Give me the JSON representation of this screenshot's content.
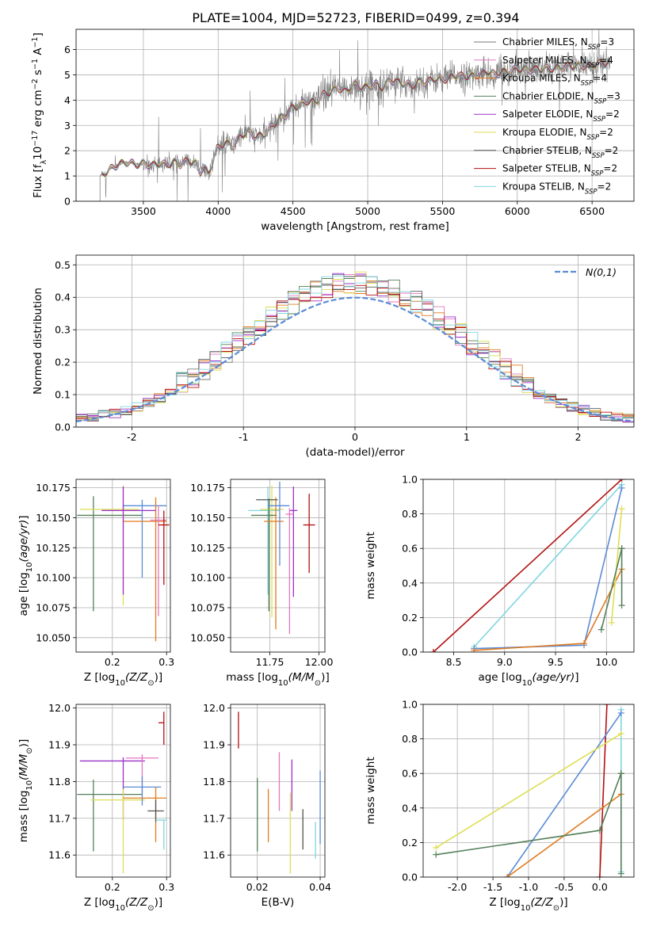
{
  "figure_title": "PLATE=1004, MJD=52723, FIBERID=0499, z=0.394",
  "models": [
    {
      "name": "Chabrier MILES",
      "nssp": "3",
      "color": "#7a7a7a"
    },
    {
      "name": "Salpeter MILES",
      "nssp": "4",
      "color": "#e377c2"
    },
    {
      "name": "Kroupa MILES",
      "nssp": "4",
      "color": "#e07b1f"
    },
    {
      "name": "Chabrier ELODIE",
      "nssp": "3",
      "color": "#55805a"
    },
    {
      "name": "Salpeter ELODIE",
      "nssp": "2",
      "color": "#9b30c8"
    },
    {
      "name": "Kroupa ELODIE",
      "nssp": "2",
      "color": "#dede55"
    },
    {
      "name": "Chabrier STELIB",
      "nssp": "2",
      "color": "#555555"
    },
    {
      "name": "Salpeter STELIB",
      "nssp": "2",
      "color": "#b31010"
    },
    {
      "name": "Kroupa STELIB",
      "nssp": "2",
      "color": "#7fd6e0"
    }
  ],
  "chart_data": [
    {
      "id": "spectrum",
      "type": "line",
      "xlabel": "wavelength [Angstrom, rest frame]",
      "ylabel": "Flux [f_λ 10^-17 erg cm^-2 s^-1 A^-1]",
      "xlim": [
        3050,
        6780
      ],
      "ylim": [
        0,
        6.8
      ],
      "xticks": [
        3500,
        4000,
        4500,
        5000,
        5500,
        6000,
        6500
      ],
      "yticks": [
        0,
        1,
        2,
        3,
        4,
        5,
        6
      ],
      "data_color": "#7f7f7f",
      "data_range": [
        3210,
        6620
      ],
      "continuum": {
        "x": [
          3210,
          3290,
          3330,
          3360,
          3400,
          3450,
          3500,
          3560,
          3600,
          3650,
          3700,
          3750,
          3800,
          3850,
          3880,
          3905,
          3935,
          3965,
          3990,
          4050,
          4100,
          4150,
          4200,
          4250,
          4300,
          4350,
          4400,
          4450,
          4500,
          4550,
          4600,
          4650,
          4700,
          4750,
          4800,
          4850,
          4900,
          4950,
          5000,
          5050,
          5100,
          5150,
          5200,
          5250,
          5300,
          5350,
          5400,
          5450,
          5500,
          5550,
          5600,
          5650,
          5700,
          5750,
          5800,
          5850,
          5900,
          5950,
          6000,
          6100,
          6200,
          6300,
          6400,
          6500,
          6600
        ],
        "y": [
          1.0,
          1.3,
          1.45,
          1.5,
          1.55,
          1.45,
          1.5,
          1.4,
          1.5,
          1.45,
          1.55,
          1.45,
          1.6,
          1.5,
          1.15,
          1.4,
          1.05,
          1.6,
          2.05,
          2.3,
          2.2,
          2.6,
          2.75,
          2.55,
          2.6,
          2.9,
          3.25,
          3.4,
          3.7,
          3.8,
          4.0,
          3.9,
          4.2,
          4.3,
          4.5,
          4.35,
          4.6,
          4.5,
          4.5,
          4.65,
          4.5,
          4.8,
          4.7,
          4.65,
          4.6,
          4.75,
          4.7,
          4.85,
          4.8,
          4.9,
          5.0,
          4.9,
          4.95,
          5.05,
          5.15,
          5.0,
          5.1,
          5.15,
          5.25,
          5.2,
          5.25,
          5.3,
          5.35,
          5.4,
          5.45
        ]
      },
      "legend_placement": "upper-right"
    },
    {
      "id": "residuals",
      "type": "step",
      "xlabel": "(data-model)/error",
      "ylabel": "Normed distribution",
      "xlim": [
        -2.5,
        2.5
      ],
      "ylim": [
        0,
        0.53
      ],
      "xticks": [
        -2,
        -1,
        0,
        1,
        2
      ],
      "yticks": [
        0.0,
        0.1,
        0.2,
        0.3,
        0.4,
        0.5
      ],
      "bins": {
        "start": -2.5,
        "stop": 2.5,
        "width": 0.1
      },
      "gaussian": {
        "label": "N(0,1)",
        "color": "#5b8bd6",
        "mu": 0,
        "sigma": 1
      },
      "legend_placement": "upper-right"
    },
    {
      "id": "age-vs-Z",
      "type": "errorbar",
      "xlabel": "Z [log10(Z/Z⊙)]",
      "ylabel": "age  [log10(age/yr)]",
      "xlim": [
        0.133,
        0.307
      ],
      "ylim": [
        10.038,
        10.182
      ],
      "xticks": [
        0.2,
        0.3
      ],
      "yticks": [
        10.05,
        10.075,
        10.1,
        10.125,
        10.15,
        10.175
      ],
      "points": [
        {
          "x": 0.165,
          "xerr": [
            0.03,
            0.09
          ],
          "y": 10.152,
          "yerr": [
            0.08,
            0.016
          ],
          "color": "#55805a"
        },
        {
          "x": 0.22,
          "xerr": [
            0.08,
            0.03
          ],
          "y": 10.157,
          "yerr": [
            0.08,
            0.02
          ],
          "color": "#dede55"
        },
        {
          "x": 0.255,
          "xerr": [
            0.035,
            0.045
          ],
          "y": 10.16,
          "yerr": [
            0.06,
            0.005
          ],
          "color": "#5b8bd6"
        },
        {
          "x": 0.28,
          "xerr": [
            0.06,
            0.02
          ],
          "y": 10.147,
          "yerr": [
            0.1,
            0.02
          ],
          "color": "#e07b1f"
        },
        {
          "x": 0.285,
          "xerr": [
            0.015,
            0.015
          ],
          "y": 10.148,
          "yerr": [
            0.08,
            0.012
          ],
          "color": "#e377c2"
        },
        {
          "x": 0.295,
          "xerr": [
            0.01,
            0.01
          ],
          "y": 10.144,
          "yerr": [
            0.05,
            0.012
          ],
          "color": "#b31010"
        },
        {
          "x": 0.22,
          "xerr": [
            0.04,
            0.06
          ],
          "y": 10.156,
          "yerr": [
            0.07,
            0.02
          ],
          "color": "#9b30c8"
        }
      ]
    },
    {
      "id": "age-vs-mass",
      "type": "errorbar",
      "xlabel": "mass [log10(M/M⊙)]",
      "ylabel": "",
      "xlim": [
        11.55,
        12.03
      ],
      "ylim": [
        10.038,
        10.182
      ],
      "xticks": [
        11.75,
        12.0
      ],
      "yticks": [
        10.05,
        10.075,
        10.1,
        10.125,
        10.15,
        10.175
      ],
      "points": [
        {
          "x": 11.74,
          "xerr": [
            0.1,
            0.06
          ],
          "y": 10.156,
          "yerr": [
            0.07,
            0.02
          ],
          "color": "#7fd6e0"
        },
        {
          "x": 11.76,
          "xerr": [
            0.06,
            0.06
          ],
          "y": 10.157,
          "yerr": [
            0.09,
            0.02
          ],
          "color": "#dede55"
        },
        {
          "x": 11.745,
          "xerr": [
            0.09,
            0.04
          ],
          "y": 10.152,
          "yerr": [
            0.08,
            0.014
          ],
          "color": "#55805a"
        },
        {
          "x": 11.78,
          "xerr": [
            0.06,
            0.04
          ],
          "y": 10.147,
          "yerr": [
            0.09,
            0.02
          ],
          "color": "#e07b1f"
        },
        {
          "x": 11.8,
          "xerr": [
            0.06,
            0.05
          ],
          "y": 10.16,
          "yerr": [
            0.05,
            0.02
          ],
          "color": "#5b8bd6"
        },
        {
          "x": 11.87,
          "xerr": [
            0.02,
            0.02
          ],
          "y": 10.156,
          "yerr": [
            0.072,
            0.02
          ],
          "color": "#9b30c8"
        },
        {
          "x": 11.85,
          "xerr": [
            0.02,
            0.02
          ],
          "y": 10.153,
          "yerr": [
            0.1,
            0.005
          ],
          "color": "#e377c2"
        },
        {
          "x": 11.95,
          "xerr": [
            0.03,
            0.03
          ],
          "y": 10.144,
          "yerr": [
            0.04,
            0.026
          ],
          "color": "#b31010"
        },
        {
          "x": 11.75,
          "xerr": [
            0.07,
            0.04
          ],
          "y": 10.165,
          "yerr": [
            0.0,
            0.0
          ],
          "color": "#555555"
        }
      ]
    },
    {
      "id": "weight-vs-age",
      "type": "line",
      "xlabel": "age  [log10(age/yr)]",
      "ylabel": "mass weight",
      "xlim": [
        8.2,
        10.27
      ],
      "ylim": [
        0,
        1.0
      ],
      "xticks": [
        8.5,
        9.0,
        9.5,
        10.0
      ],
      "yticks": [
        0.0,
        0.2,
        0.4,
        0.6,
        0.8,
        1.0
      ],
      "series": [
        {
          "color": "#b31010",
          "x": [
            8.3,
            10.15
          ],
          "y": [
            0.0,
            1.0
          ]
        },
        {
          "color": "#7fd6e0",
          "x": [
            8.7,
            10.15
          ],
          "y": [
            0.03,
            0.97
          ]
        },
        {
          "color": "#5b8bd6",
          "x": [
            8.7,
            9.78,
            10.15
          ],
          "y": [
            0.02,
            0.04,
            0.95
          ]
        },
        {
          "color": "#e07b1f",
          "x": [
            8.7,
            9.78,
            10.15
          ],
          "y": [
            0.01,
            0.05,
            0.48
          ]
        },
        {
          "color": "#dede55",
          "x": [
            10.05,
            10.15
          ],
          "y": [
            0.17,
            0.83
          ]
        },
        {
          "color": "#55805a",
          "x": [
            9.95,
            10.15
          ],
          "y": [
            0.13,
            0.6
          ]
        },
        {
          "color": "#55805a",
          "x": [
            10.15,
            10.15
          ],
          "y": [
            0.27,
            0.6
          ]
        }
      ]
    },
    {
      "id": "mass-vs-Z",
      "type": "errorbar",
      "xlabel": "Z [log10(Z/Z⊙)]",
      "ylabel": "mass [log10(M/M⊙)]",
      "xlim": [
        0.133,
        0.307
      ],
      "ylim": [
        11.54,
        12.01
      ],
      "xticks": [
        0.2,
        0.3
      ],
      "yticks": [
        11.6,
        11.7,
        11.8,
        11.9,
        12.0
      ],
      "points": [
        {
          "x": 0.165,
          "xerr": [
            0.03,
            0.09
          ],
          "y": 11.765,
          "yerr": [
            0.155,
            0.04
          ],
          "color": "#55805a"
        },
        {
          "x": 0.22,
          "xerr": [
            0.08,
            0.04
          ],
          "y": 11.856,
          "yerr": [
            0.16,
            0.01
          ],
          "color": "#9b30c8"
        },
        {
          "x": 0.255,
          "xerr": [
            0.03,
            0.03
          ],
          "y": 11.864,
          "yerr": [
            0.1,
            0.01
          ],
          "color": "#e377c2"
        },
        {
          "x": 0.22,
          "xerr": [
            0.06,
            0.04
          ],
          "y": 11.75,
          "yerr": [
            0.2,
            0.03
          ],
          "color": "#dede55"
        },
        {
          "x": 0.255,
          "xerr": [
            0.035,
            0.035
          ],
          "y": 11.785,
          "yerr": [
            0.05,
            0.03
          ],
          "color": "#5b8bd6"
        },
        {
          "x": 0.28,
          "xerr": [
            0.06,
            0.02
          ],
          "y": 11.755,
          "yerr": [
            0.12,
            0.03
          ],
          "color": "#e07b1f"
        },
        {
          "x": 0.28,
          "xerr": [
            0.015,
            0.015
          ],
          "y": 11.72,
          "yerr": [
            0.03,
            0.03
          ],
          "color": "#555555"
        },
        {
          "x": 0.295,
          "xerr": [
            0.015,
            0.005
          ],
          "y": 11.695,
          "yerr": [
            0.08,
            0.0
          ],
          "color": "#7fd6e0"
        },
        {
          "x": 0.295,
          "xerr": [
            0.01,
            0.0
          ],
          "y": 11.96,
          "yerr": [
            0.06,
            0.03
          ],
          "color": "#b31010"
        }
      ]
    },
    {
      "id": "mass-vs-ebv",
      "type": "errorbar",
      "xlabel": "E(B-V)",
      "ylabel": "",
      "xlim": [
        0.0115,
        0.0415
      ],
      "ylim": [
        11.54,
        12.01
      ],
      "xticks": [
        0.02,
        0.04
      ],
      "yticks": [
        11.6,
        11.7,
        11.8,
        11.9,
        12.0
      ],
      "points": [
        {
          "x": 0.014,
          "y": 11.94,
          "yerr": [
            0.05,
            0.05
          ],
          "color": "#b31010"
        },
        {
          "x": 0.02,
          "y": 11.71,
          "yerr": [
            0.1,
            0.1
          ],
          "color": "#55805a"
        },
        {
          "x": 0.0235,
          "y": 11.71,
          "yerr": [
            0.075,
            0.07
          ],
          "color": "#e07b1f"
        },
        {
          "x": 0.027,
          "y": 11.8,
          "yerr": [
            0.08,
            0.08
          ],
          "color": "#e377c2"
        },
        {
          "x": 0.0305,
          "y": 11.66,
          "yerr": [
            0.11,
            0.11
          ],
          "color": "#dede55"
        },
        {
          "x": 0.031,
          "y": 11.79,
          "yerr": [
            0.07,
            0.07
          ],
          "color": "#9b30c8"
        },
        {
          "x": 0.0345,
          "y": 11.67,
          "yerr": [
            0.055,
            0.055
          ],
          "color": "#555555"
        },
        {
          "x": 0.0385,
          "y": 11.64,
          "yerr": [
            0.05,
            0.05
          ],
          "color": "#7fd6e0"
        },
        {
          "x": 0.04,
          "y": 11.73,
          "yerr": [
            0.1,
            0.1
          ],
          "color": "#5b8bd6"
        }
      ]
    },
    {
      "id": "weight-vs-Z",
      "type": "line",
      "xlabel": "Z [log10(Z/Z⊙)]",
      "ylabel": "mass weight",
      "xlim": [
        -2.48,
        0.48
      ],
      "ylim": [
        0,
        1.0
      ],
      "xticks": [
        -2.0,
        -1.5,
        -1.0,
        -0.5,
        0.0
      ],
      "yticks": [
        0.0,
        0.2,
        0.4,
        0.6,
        0.8,
        1.0
      ],
      "series": [
        {
          "color": "#b31010",
          "x": [
            0.0,
            0.1
          ],
          "y": [
            0.0,
            1.0
          ]
        },
        {
          "color": "#7fd6e0",
          "x": [
            0.3,
            0.3
          ],
          "y": [
            0.03,
            0.97
          ]
        },
        {
          "color": "#5b8bd6",
          "x": [
            -1.3,
            0.3
          ],
          "y": [
            0.0,
            0.95
          ]
        },
        {
          "color": "#e07b1f",
          "x": [
            -1.3,
            0.3
          ],
          "y": [
            0.0,
            0.48
          ]
        },
        {
          "color": "#dede55",
          "x": [
            -2.3,
            0.3
          ],
          "y": [
            0.17,
            0.83
          ]
        },
        {
          "color": "#55805a",
          "x": [
            -2.3,
            0.0,
            0.3
          ],
          "y": [
            0.13,
            0.27,
            0.6
          ]
        },
        {
          "color": "#55805a",
          "x": [
            0.3,
            0.3
          ],
          "y": [
            0.02,
            0.6
          ]
        }
      ]
    }
  ]
}
